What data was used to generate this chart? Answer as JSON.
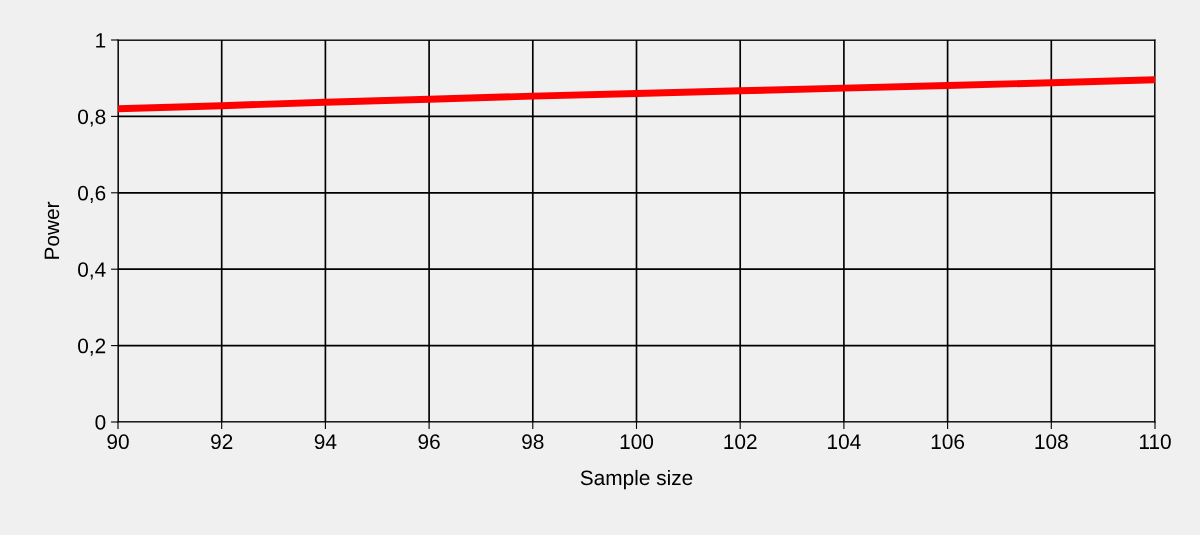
{
  "chart_data": {
    "type": "line",
    "xlabel": "Sample size",
    "ylabel": "Power",
    "x": [
      90,
      92,
      94,
      96,
      98,
      100,
      102,
      104,
      106,
      108,
      110
    ],
    "series": [
      {
        "color": "#ff0000",
        "values": [
          0.82,
          0.828,
          0.837,
          0.845,
          0.853,
          0.86,
          0.867,
          0.874,
          0.881,
          0.888,
          0.896
        ]
      }
    ],
    "xlim": [
      90,
      110
    ],
    "ylim": [
      0,
      1
    ],
    "xticks": [
      90,
      92,
      94,
      96,
      98,
      100,
      102,
      104,
      106,
      108,
      110
    ],
    "yticks": [
      0,
      {
        "value": 0.2,
        "label": "0,2"
      },
      {
        "value": 0.4,
        "label": "0,4"
      },
      {
        "value": 0.6,
        "label": "0,6"
      },
      {
        "value": 0.8,
        "label": "0,8"
      },
      1
    ],
    "grid": true,
    "marker": "none",
    "line_style": "solid"
  }
}
